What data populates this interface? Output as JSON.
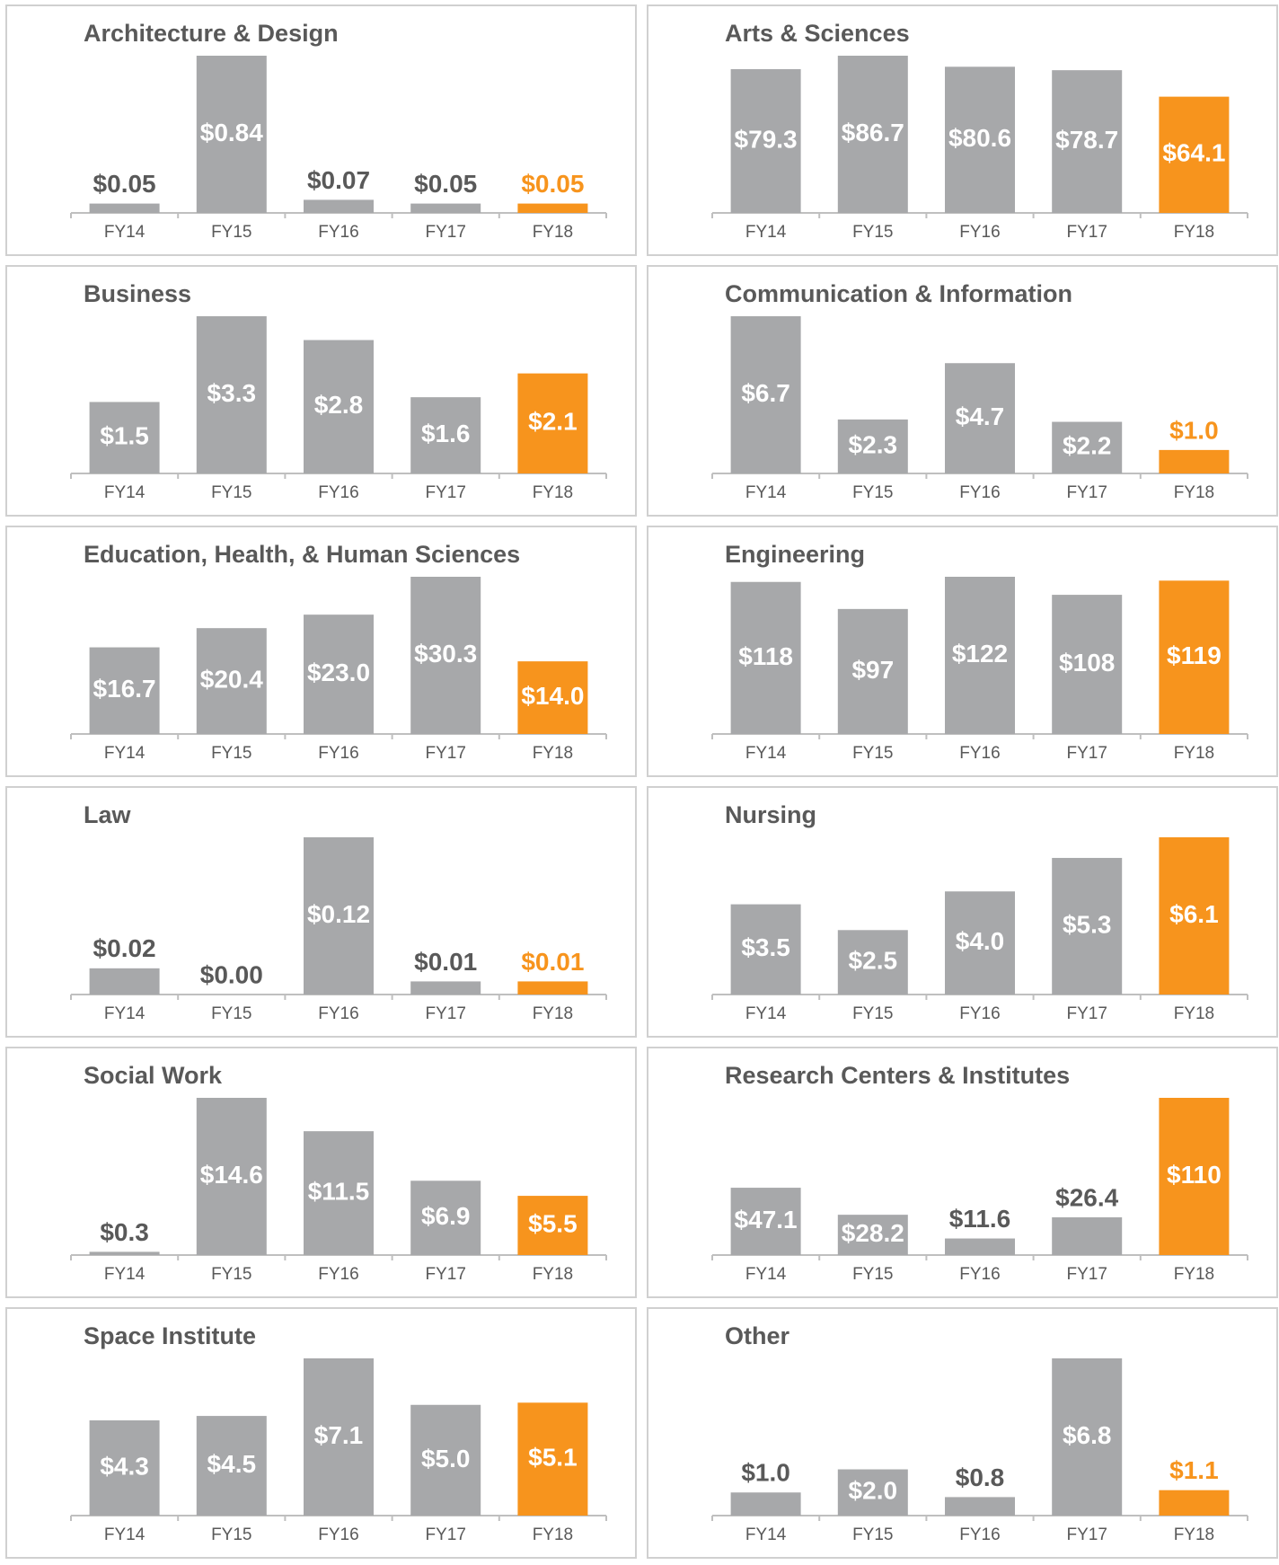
{
  "chart_data": [
    {
      "type": "bar",
      "title": "Architecture & Design",
      "categories": [
        "FY14",
        "FY15",
        "FY16",
        "FY17",
        "FY18"
      ],
      "values": [
        0.05,
        0.84,
        0.07,
        0.05,
        0.05
      ],
      "value_labels": [
        "$0.05",
        "$0.84",
        "$0.07",
        "$0.05",
        "$0.05"
      ],
      "colors": [
        "#a7a8aa",
        "#a7a8aa",
        "#a7a8aa",
        "#a7a8aa",
        "#f7941d"
      ]
    },
    {
      "type": "bar",
      "title": "Arts & Sciences",
      "categories": [
        "FY14",
        "FY15",
        "FY16",
        "FY17",
        "FY18"
      ],
      "values": [
        79.3,
        86.7,
        80.6,
        78.7,
        64.1
      ],
      "value_labels": [
        "$79.3",
        "$86.7",
        "$80.6",
        "$78.7",
        "$64.1"
      ],
      "colors": [
        "#a7a8aa",
        "#a7a8aa",
        "#a7a8aa",
        "#a7a8aa",
        "#f7941d"
      ]
    },
    {
      "type": "bar",
      "title": "Business",
      "categories": [
        "FY14",
        "FY15",
        "FY16",
        "FY17",
        "FY18"
      ],
      "values": [
        1.5,
        3.3,
        2.8,
        1.6,
        2.1
      ],
      "value_labels": [
        "$1.5",
        "$3.3",
        "$2.8",
        "$1.6",
        "$2.1"
      ],
      "colors": [
        "#a7a8aa",
        "#a7a8aa",
        "#a7a8aa",
        "#a7a8aa",
        "#f7941d"
      ]
    },
    {
      "type": "bar",
      "title": "Communication & Information",
      "categories": [
        "FY14",
        "FY15",
        "FY16",
        "FY17",
        "FY18"
      ],
      "values": [
        6.7,
        2.3,
        4.7,
        2.2,
        1.0
      ],
      "value_labels": [
        "$6.7",
        "$2.3",
        "$4.7",
        "$2.2",
        "$1.0"
      ],
      "colors": [
        "#a7a8aa",
        "#a7a8aa",
        "#a7a8aa",
        "#a7a8aa",
        "#f7941d"
      ]
    },
    {
      "type": "bar",
      "title": "Education, Health, & Human Sciences",
      "categories": [
        "FY14",
        "FY15",
        "FY16",
        "FY17",
        "FY18"
      ],
      "values": [
        16.7,
        20.4,
        23.0,
        30.3,
        14.0
      ],
      "value_labels": [
        "$16.7",
        "$20.4",
        "$23.0",
        "$30.3",
        "$14.0"
      ],
      "colors": [
        "#a7a8aa",
        "#a7a8aa",
        "#a7a8aa",
        "#a7a8aa",
        "#f7941d"
      ]
    },
    {
      "type": "bar",
      "title": "Engineering",
      "categories": [
        "FY14",
        "FY15",
        "FY16",
        "FY17",
        "FY18"
      ],
      "values": [
        118,
        97,
        122,
        108,
        119
      ],
      "value_labels": [
        "$118",
        "$97",
        "$122",
        "$108",
        "$119"
      ],
      "colors": [
        "#a7a8aa",
        "#a7a8aa",
        "#a7a8aa",
        "#a7a8aa",
        "#f7941d"
      ]
    },
    {
      "type": "bar",
      "title": "Law",
      "categories": [
        "FY14",
        "FY15",
        "FY16",
        "FY17",
        "FY18"
      ],
      "values": [
        0.02,
        0.0,
        0.12,
        0.01,
        0.01
      ],
      "value_labels": [
        "$0.02",
        "$0.00",
        "$0.12",
        "$0.01",
        "$0.01"
      ],
      "colors": [
        "#a7a8aa",
        "#a7a8aa",
        "#a7a8aa",
        "#a7a8aa",
        "#f7941d"
      ]
    },
    {
      "type": "bar",
      "title": "Nursing",
      "categories": [
        "FY14",
        "FY15",
        "FY16",
        "FY17",
        "FY18"
      ],
      "values": [
        3.5,
        2.5,
        4.0,
        5.3,
        6.1
      ],
      "value_labels": [
        "$3.5",
        "$2.5",
        "$4.0",
        "$5.3",
        "$6.1"
      ],
      "colors": [
        "#a7a8aa",
        "#a7a8aa",
        "#a7a8aa",
        "#a7a8aa",
        "#f7941d"
      ]
    },
    {
      "type": "bar",
      "title": "Social Work",
      "categories": [
        "FY14",
        "FY15",
        "FY16",
        "FY17",
        "FY18"
      ],
      "values": [
        0.3,
        14.6,
        11.5,
        6.9,
        5.5
      ],
      "value_labels": [
        "$0.3",
        "$14.6",
        "$11.5",
        "$6.9",
        "$5.5"
      ],
      "colors": [
        "#a7a8aa",
        "#a7a8aa",
        "#a7a8aa",
        "#a7a8aa",
        "#f7941d"
      ]
    },
    {
      "type": "bar",
      "title": "Research Centers & Institutes",
      "categories": [
        "FY14",
        "FY15",
        "FY16",
        "FY17",
        "FY18"
      ],
      "values": [
        47.1,
        28.2,
        11.6,
        26.4,
        110
      ],
      "value_labels": [
        "$47.1",
        "$28.2",
        "$11.6",
        "$26.4",
        "$110"
      ],
      "colors": [
        "#a7a8aa",
        "#a7a8aa",
        "#a7a8aa",
        "#a7a8aa",
        "#f7941d"
      ]
    },
    {
      "type": "bar",
      "title": "Space Institute",
      "categories": [
        "FY14",
        "FY15",
        "FY16",
        "FY17",
        "FY18"
      ],
      "values": [
        4.3,
        4.5,
        7.1,
        5.0,
        5.1
      ],
      "value_labels": [
        "$4.3",
        "$4.5",
        "$7.1",
        "$5.0",
        "$5.1"
      ],
      "colors": [
        "#a7a8aa",
        "#a7a8aa",
        "#a7a8aa",
        "#a7a8aa",
        "#f7941d"
      ]
    },
    {
      "type": "bar",
      "title": "Other",
      "categories": [
        "FY14",
        "FY15",
        "FY16",
        "FY17",
        "FY18"
      ],
      "values": [
        1.0,
        2.0,
        0.8,
        6.8,
        1.1
      ],
      "value_labels": [
        "$1.0",
        "$2.0",
        "$0.8",
        "$6.8",
        "$1.1"
      ],
      "colors": [
        "#a7a8aa",
        "#a7a8aa",
        "#a7a8aa",
        "#a7a8aa",
        "#f7941d"
      ]
    }
  ]
}
